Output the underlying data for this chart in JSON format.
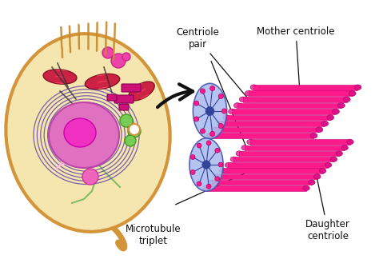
{
  "bg_color": "#ffffff",
  "cell_color": "#f5e6b0",
  "cell_border_color": "#d4943a",
  "nucleus_color": "#e87fbd",
  "nucleolus_color": "#f040c0",
  "mito_color": "#cc2244",
  "centriole_pink": "#ff1a8c",
  "centriole_blue": "#8899cc",
  "arrow_color": "#111111",
  "text_color": "#111111",
  "label_fontsize": 8.5,
  "figsize": [
    4.74,
    3.24
  ],
  "dpi": 100,
  "labels": {
    "mother": "Mother centriole",
    "pair": "Centriole\npair",
    "microtubule": "Microtubule\ntriplet",
    "daughter": "Daughter\ncentriole"
  }
}
